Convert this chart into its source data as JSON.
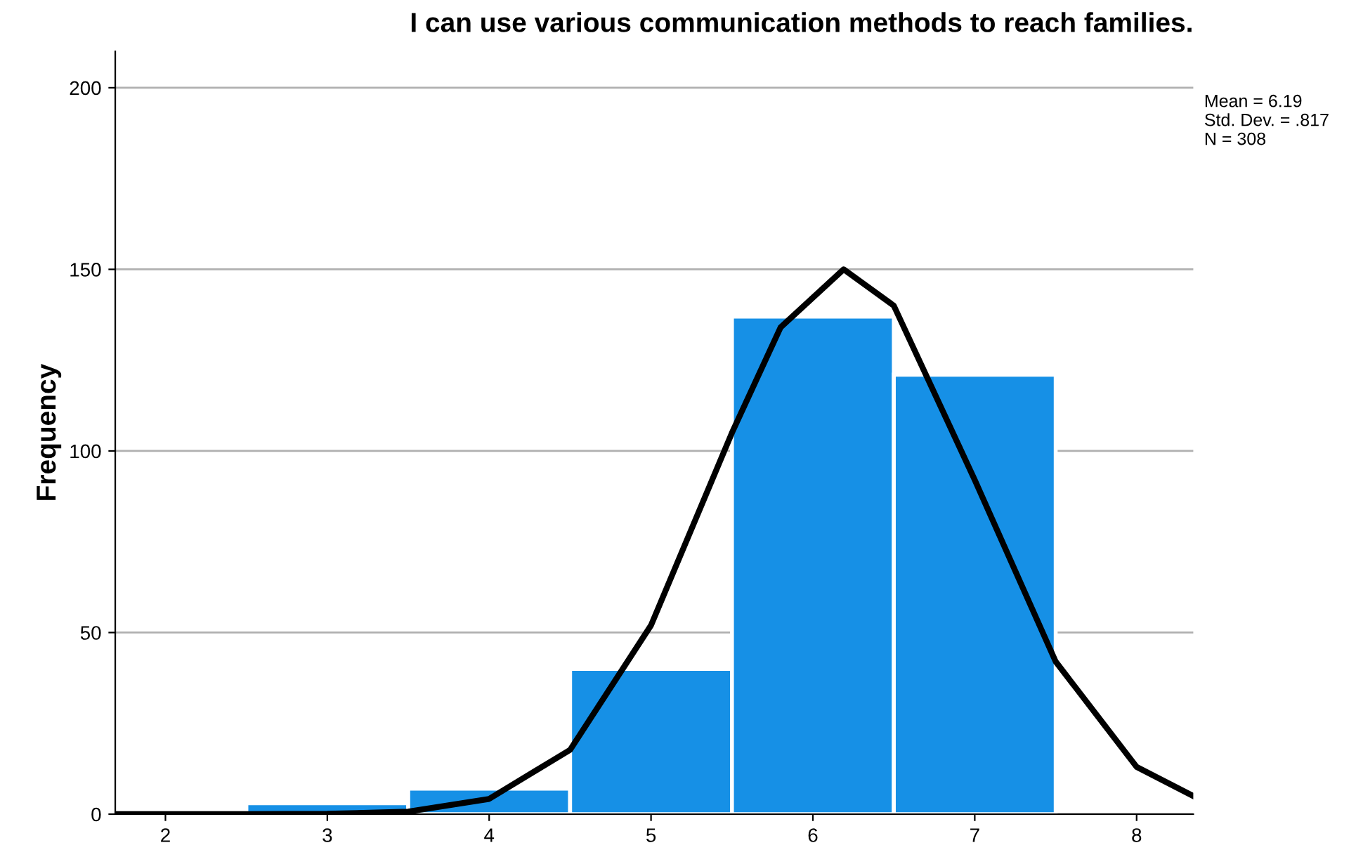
{
  "chart_data": {
    "type": "histogram",
    "title": "I can use various communication methods to reach families.",
    "ylabel": "Frequency",
    "bins": [
      2.5,
      3.5,
      4.5,
      5.5,
      6.5,
      7.5
    ],
    "values": [
      3,
      7,
      40,
      137,
      121
    ],
    "color": "#1690e6",
    "series": [
      {
        "type": "line",
        "color": "#000000",
        "x": [
          1.69,
          2.5,
          3.0,
          3.5,
          4.0,
          4.5,
          5.0,
          5.5,
          5.8,
          6.19,
          6.5,
          7.0,
          7.5,
          8.0,
          8.35
        ],
        "values": [
          0,
          0,
          0.1,
          0.7,
          4.2,
          17.7,
          52,
          105,
          134,
          150,
          140,
          92,
          42,
          13,
          5
        ]
      }
    ],
    "xlim": [
      1.69,
      8.35
    ],
    "xticks": [
      2,
      3,
      4,
      5,
      6,
      7,
      8
    ],
    "ylim": [
      0,
      210
    ],
    "yticks": [
      0,
      50,
      100,
      150,
      200
    ],
    "grid": "y",
    "annotations": [
      "Mean = 6.19\nStd. Dev. = .817\nN = 308"
    ]
  }
}
